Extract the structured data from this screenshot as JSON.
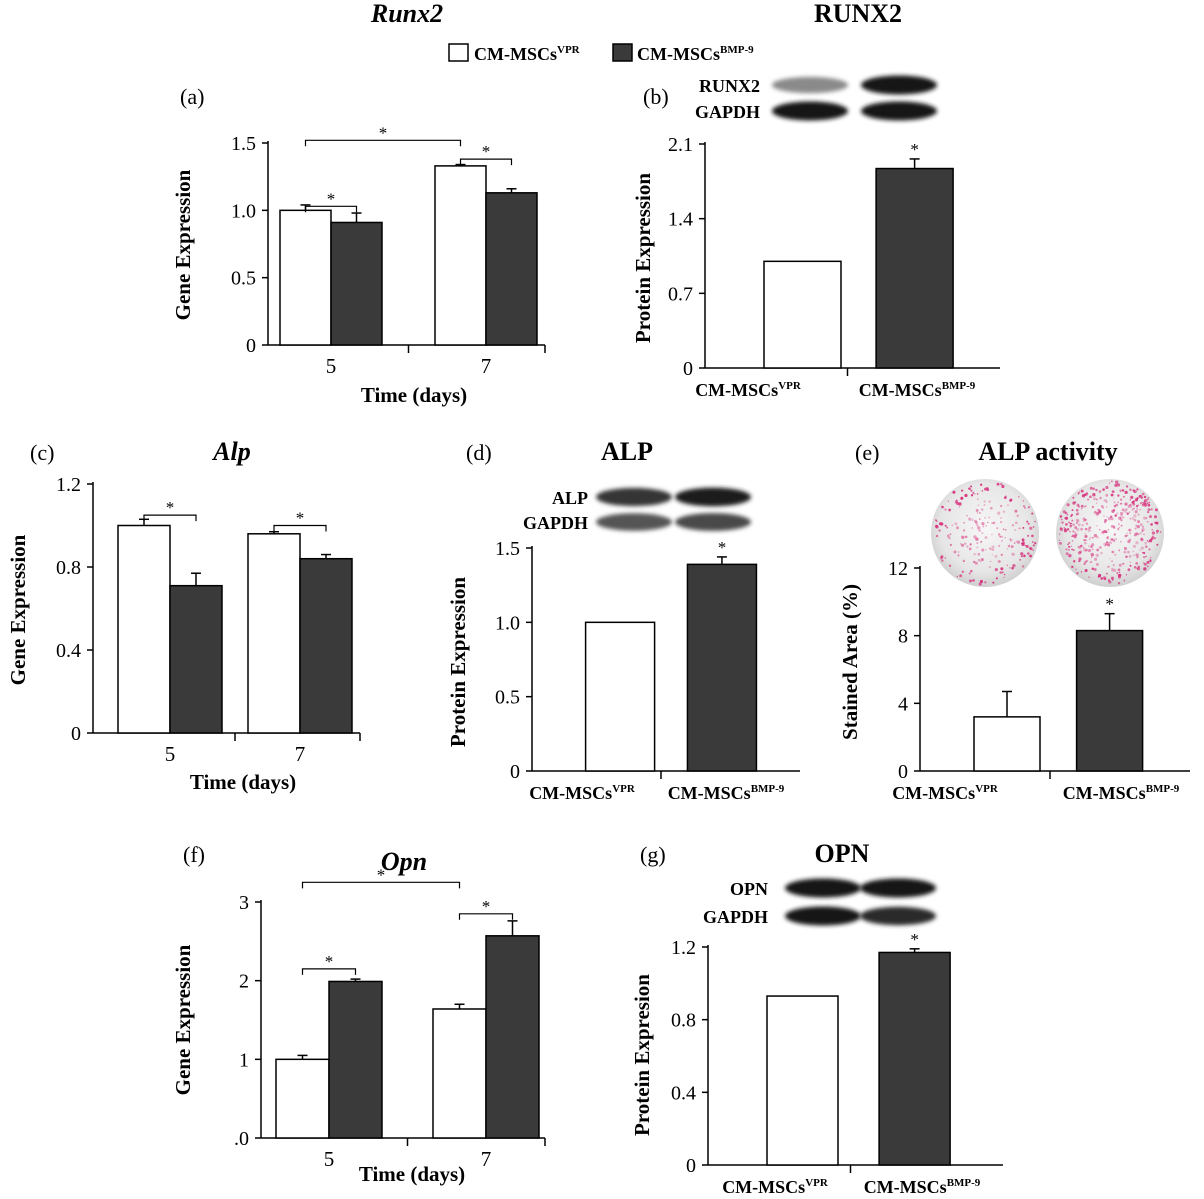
{
  "legend": {
    "items": [
      {
        "label": "CM-MSCs",
        "sup": "VPR",
        "color": "#ffffff"
      },
      {
        "label": "CM-MSCs",
        "sup": "BMP-9",
        "color": "#3a3a3a"
      }
    ]
  },
  "colors": {
    "control": "#ffffff",
    "treated": "#3a3a3a",
    "axis": "#000000"
  },
  "chart_data": [
    {
      "id": "a",
      "panel_label": "(a)",
      "title": "Runx2",
      "title_italic": true,
      "type": "bar",
      "blot": null,
      "xlabel": "Time (days)",
      "ylabel": "Gene Expression",
      "categories": [
        "5",
        "7"
      ],
      "ylim": [
        0,
        1.5
      ],
      "yticks": [
        0,
        0.5,
        1.0,
        1.5
      ],
      "yticklabels": [
        "0",
        "0.5",
        "1.0",
        "1.5"
      ],
      "series": [
        {
          "key": "control",
          "values": [
            1.0,
            1.33
          ],
          "errors": [
            0.04,
            0.01
          ]
        },
        {
          "key": "treated",
          "values": [
            0.91,
            1.13
          ],
          "errors": [
            0.07,
            0.03
          ]
        }
      ],
      "significance": [
        {
          "from": [
            0,
            0
          ],
          "to": [
            0,
            1
          ],
          "level": 1.03,
          "label": "*"
        },
        {
          "from": [
            1,
            0
          ],
          "to": [
            1,
            1
          ],
          "level": 1.38,
          "label": "*"
        },
        {
          "from": [
            0,
            0
          ],
          "to": [
            1,
            0
          ],
          "level": 1.52,
          "label": "*"
        }
      ]
    },
    {
      "id": "b",
      "panel_label": "(b)",
      "title": "RUNX2",
      "title_italic": false,
      "type": "bar",
      "blot": {
        "rows": [
          "RUNX2",
          "GAPDH"
        ],
        "intensity": [
          [
            0.45,
            1.0
          ],
          [
            1.0,
            1.0
          ]
        ]
      },
      "xlabel": "",
      "ylabel": "Protein Expression",
      "categories": [
        {
          "label": "CM-MSCs",
          "sup": "VPR"
        },
        {
          "label": "CM-MSCs",
          "sup": "BMP-9"
        }
      ],
      "ylim": [
        0,
        2.1
      ],
      "yticks": [
        0,
        0.7,
        1.4,
        2.1
      ],
      "yticklabels": [
        "0",
        "0.7",
        "1.4",
        "2.1"
      ],
      "values": [
        1.0,
        1.87
      ],
      "errors": [
        0,
        0.09
      ],
      "stars": [
        "",
        "*"
      ]
    },
    {
      "id": "c",
      "panel_label": "(c)",
      "title": "Alp",
      "title_italic": true,
      "type": "bar",
      "blot": null,
      "xlabel": "Time (days)",
      "ylabel": "Gene Expression",
      "categories": [
        "5",
        "7"
      ],
      "ylim": [
        0,
        1.2
      ],
      "yticks": [
        0,
        0.4,
        0.8,
        1.2
      ],
      "yticklabels": [
        "0",
        "0.4",
        "0.8",
        "1.2"
      ],
      "series": [
        {
          "key": "control",
          "values": [
            1.0,
            0.96
          ],
          "errors": [
            0.03,
            0.01
          ]
        },
        {
          "key": "treated",
          "values": [
            0.71,
            0.84
          ],
          "errors": [
            0.06,
            0.02
          ]
        }
      ],
      "significance": [
        {
          "from": [
            0,
            0
          ],
          "to": [
            0,
            1
          ],
          "level": 1.05,
          "label": "*"
        },
        {
          "from": [
            1,
            0
          ],
          "to": [
            1,
            1
          ],
          "level": 1.0,
          "label": "*"
        }
      ]
    },
    {
      "id": "d",
      "panel_label": "(d)",
      "title": "ALP",
      "title_italic": false,
      "type": "bar",
      "blot": {
        "rows": [
          "ALP",
          "GAPDH"
        ],
        "intensity": [
          [
            0.85,
            0.95
          ],
          [
            0.7,
            0.75
          ]
        ]
      },
      "xlabel": "",
      "ylabel": "Protein Expression",
      "categories": [
        {
          "label": "CM-MSCs",
          "sup": "VPR"
        },
        {
          "label": "CM-MSCs",
          "sup": "BMP-9"
        }
      ],
      "ylim": [
        0,
        1.5
      ],
      "yticks": [
        0,
        0.5,
        1.0,
        1.5
      ],
      "yticklabels": [
        "0",
        "0.5",
        "1.0",
        "1.5"
      ],
      "values": [
        1.0,
        1.39
      ],
      "errors": [
        0,
        0.05
      ],
      "stars": [
        "",
        "*"
      ]
    },
    {
      "id": "e",
      "panel_label": "(e)",
      "title": "ALP activity",
      "title_italic": false,
      "type": "bar",
      "blot": null,
      "xlabel": "",
      "ylabel": "Stained Area (%)",
      "categories": [
        {
          "label": "CM-MSCs",
          "sup": "VPR"
        },
        {
          "label": "CM-MSCs",
          "sup": "BMP-9"
        }
      ],
      "ylim": [
        0,
        12
      ],
      "yticks": [
        0,
        4,
        8,
        12
      ],
      "yticklabels": [
        "0",
        "4",
        "8",
        "12"
      ],
      "values": [
        3.2,
        8.3
      ],
      "errors": [
        1.5,
        1.0
      ],
      "stars": [
        "",
        "*"
      ]
    },
    {
      "id": "f",
      "panel_label": "(f)",
      "title": "Opn",
      "title_italic": true,
      "type": "bar",
      "blot": null,
      "xlabel": "Time (days)",
      "ylabel": "Gene Expression",
      "categories": [
        "5",
        "7"
      ],
      "ylim": [
        0,
        3
      ],
      "yticks": [
        0,
        1,
        2,
        3
      ],
      "yticklabels": [
        ".0",
        "1",
        "2",
        "3"
      ],
      "series": [
        {
          "key": "control",
          "values": [
            1.0,
            1.64
          ],
          "errors": [
            0.05,
            0.06
          ]
        },
        {
          "key": "treated",
          "values": [
            1.99,
            2.57
          ],
          "errors": [
            0.03,
            0.19
          ]
        }
      ],
      "significance": [
        {
          "from": [
            0,
            0
          ],
          "to": [
            0,
            1
          ],
          "level": 2.15,
          "label": "*"
        },
        {
          "from": [
            1,
            0
          ],
          "to": [
            1,
            1
          ],
          "level": 2.85,
          "label": "*"
        },
        {
          "from": [
            0,
            0
          ],
          "to": [
            1,
            0
          ],
          "level": 3.25,
          "label": "*"
        }
      ]
    },
    {
      "id": "g",
      "panel_label": "(g)",
      "title": "OPN",
      "title_italic": false,
      "type": "bar",
      "blot": {
        "rows": [
          "OPN",
          "GAPDH"
        ],
        "intensity": [
          [
            1.0,
            1.0
          ],
          [
            1.0,
            0.9
          ]
        ]
      },
      "xlabel": "",
      "ylabel": "Protein Expresion",
      "categories": [
        {
          "label": "CM-MSCs",
          "sup": "VPR"
        },
        {
          "label": "CM-MSCs",
          "sup": "BMP-9"
        }
      ],
      "ylim": [
        0,
        1.2
      ],
      "yticks": [
        0,
        0.4,
        0.8,
        1.2
      ],
      "yticklabels": [
        "0",
        "0.4",
        "0.8",
        "1.2"
      ],
      "values": [
        0.93,
        1.17
      ],
      "errors": [
        0,
        0.02
      ],
      "stars": [
        "",
        "*"
      ]
    }
  ]
}
